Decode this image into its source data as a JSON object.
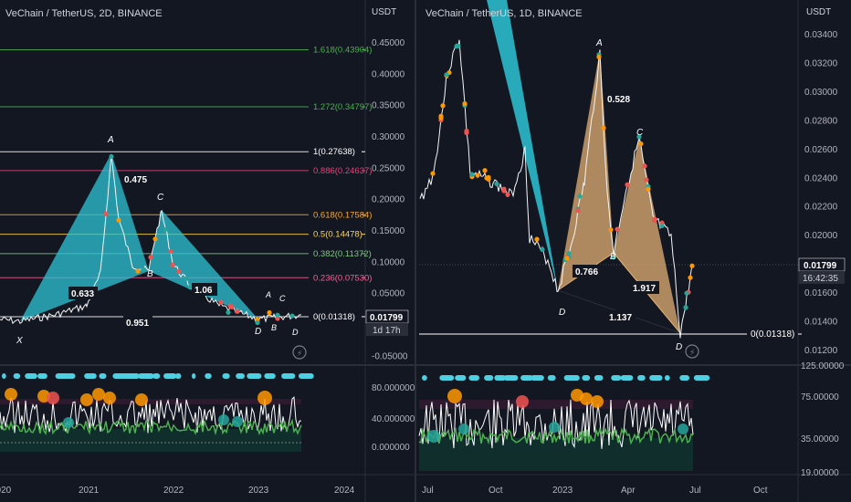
{
  "left_panel": {
    "title": "VeChain / TetherUS, 2D, BINANCE",
    "currency": "USDT",
    "price_label": "0.01799",
    "countdown_label": "1d 17h",
    "price_axis": [
      "0.45000",
      "0.40000",
      "0.35000",
      "0.30000",
      "0.25000",
      "0.20000",
      "0.15000",
      "0.10000",
      "0.05000",
      "0.00000",
      "-0.05000"
    ],
    "osc_axis": [
      "80.000000",
      "40.000000",
      "0.000000"
    ],
    "time_axis": [
      "2020",
      "2021",
      "2022",
      "2023",
      "2024"
    ],
    "fib_levels": [
      {
        "label": "1.618(0.43904)",
        "value": 0.43904,
        "color": "#4caf50"
      },
      {
        "label": "1.272(0.34797)",
        "value": 0.34797,
        "color": "#4caf50"
      },
      {
        "label": "1(0.27638)",
        "value": 0.27638,
        "color": "#ffffff"
      },
      {
        "label": "0.886(0.24637)",
        "value": 0.24637,
        "color": "#e0457b"
      },
      {
        "label": "0.618(0.17584)",
        "value": 0.17584,
        "color": "#ffa726"
      },
      {
        "label": "0.5(0.14478)",
        "value": 0.14478,
        "color": "#ffd54f"
      },
      {
        "label": "0.382(0.11372)",
        "value": 0.11372,
        "color": "#81c784"
      },
      {
        "label": "0.236(0.07530)",
        "value": 0.0753,
        "color": "#f06292"
      },
      {
        "label": "0(0.01318)",
        "value": 0.01318,
        "color": "#ffffff"
      }
    ],
    "pattern_points": {
      "X": "X",
      "A": "A",
      "B": "B",
      "C": "C",
      "D": "D"
    },
    "ratios": [
      "0.475",
      "0.633",
      "0.951",
      "1.06"
    ],
    "small_labels": [
      "A",
      "C",
      "B",
      "D",
      "D"
    ]
  },
  "right_panel": {
    "title": "VeChain / TetherUS, 1D, BINANCE",
    "currency": "USDT",
    "price_label": "0.01799",
    "countdown_label": "16:42:35",
    "price_axis": [
      "0.03400",
      "0.03200",
      "0.03000",
      "0.02800",
      "0.02600",
      "0.02400",
      "0.02200",
      "0.02000",
      "0.01800",
      "0.01600",
      "0.01400",
      "0.01200"
    ],
    "osc_axis": [
      "125.00000",
      "75.00000",
      "35.00000",
      "19.00000"
    ],
    "time_axis": [
      "Jul",
      "Oct",
      "2023",
      "Apr",
      "Jul",
      "Oct"
    ],
    "fib_label": "0(0.01318)",
    "pattern_points": {
      "A": "A",
      "B": "B",
      "C": "C",
      "D1": "D",
      "D2": "D"
    },
    "ratios": [
      "0.528",
      "0.766",
      "1.917",
      "1.137"
    ]
  },
  "colors": {
    "bg": "#131722",
    "cyan": "#2ec4d6",
    "tan": "#e3b074",
    "grid": "#2a2e39"
  }
}
